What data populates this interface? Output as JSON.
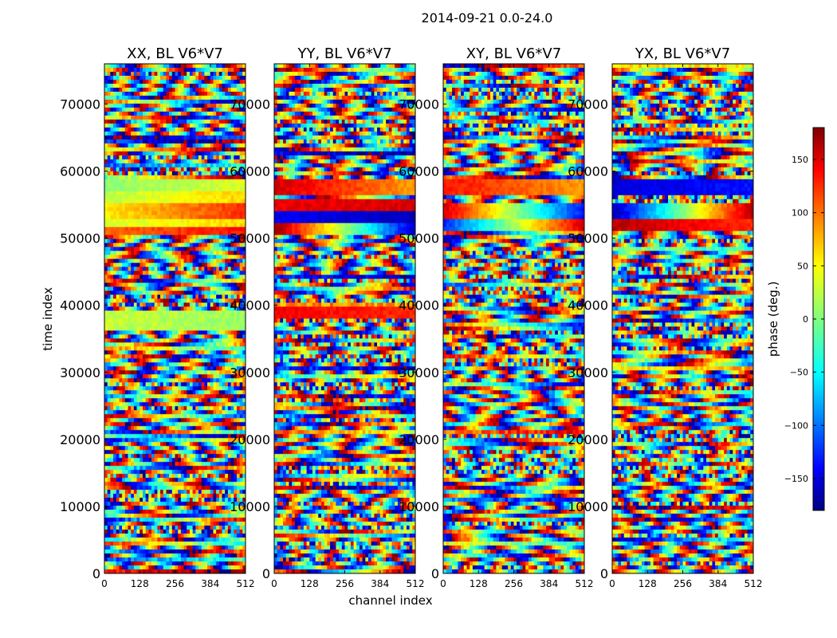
{
  "figure": {
    "suptitle": "2014-09-21 0.0-24.0",
    "xlabel": "channel index",
    "ylabel": "time index"
  },
  "colorbar": {
    "label": "phase (deg.)",
    "range": [
      -180,
      180
    ],
    "ticks": [
      -150,
      -100,
      -50,
      0,
      50,
      100,
      150
    ],
    "tick_labels": [
      "−150",
      "−100",
      "−50",
      "0",
      "50",
      "100",
      "150"
    ],
    "colormap": "jet",
    "colors": [
      "#00007f",
      "#0000ff",
      "#00ffff",
      "#7fff7f",
      "#ffff00",
      "#ff0000",
      "#7f0000"
    ]
  },
  "chart_data": [
    {
      "type": "heatmap",
      "title": "XX, BL V6*V7",
      "xlabel": "channel index",
      "ylabel": "time index",
      "xlim": [
        0,
        512
      ],
      "ylim": [
        0,
        76000
      ],
      "xticks": [
        0,
        128,
        256,
        384,
        512
      ],
      "xtick_labels": [
        "0",
        "128",
        "256",
        "384",
        "512"
      ],
      "yticks": [
        0,
        10000,
        20000,
        30000,
        40000,
        50000,
        60000,
        70000
      ],
      "ytick_labels": [
        "0",
        "10000",
        "20000",
        "30000",
        "40000",
        "50000",
        "60000",
        "70000"
      ],
      "z_label": "phase (deg.)",
      "z_range": [
        -180,
        180
      ],
      "bands": [
        {
          "t_start": 50500,
          "t_end": 51500,
          "phase_deg": 100,
          "phase_end_deg": 130
        },
        {
          "t_start": 51500,
          "t_end": 53000,
          "phase_deg": 30,
          "phase_end_deg": 60
        },
        {
          "t_start": 53000,
          "t_end": 55000,
          "phase_deg": 50,
          "phase_end_deg": 120
        },
        {
          "t_start": 55000,
          "t_end": 57000,
          "phase_deg": 20,
          "phase_end_deg": 60
        },
        {
          "t_start": 57000,
          "t_end": 59000,
          "phase_deg": 5,
          "phase_end_deg": 30
        },
        {
          "t_start": 36500,
          "t_end": 39000,
          "phase_deg": 25,
          "phase_end_deg": 10
        }
      ]
    },
    {
      "type": "heatmap",
      "title": "YY, BL V6*V7",
      "xlabel": "channel index",
      "ylabel": "time index",
      "xlim": [
        0,
        512
      ],
      "ylim": [
        0,
        76000
      ],
      "xticks": [
        0,
        128,
        256,
        384,
        512
      ],
      "xtick_labels": [
        "0",
        "128",
        "256",
        "384",
        "512"
      ],
      "yticks": [
        0,
        10000,
        20000,
        30000,
        40000,
        50000,
        60000,
        70000
      ],
      "ytick_labels": [
        "0",
        "10000",
        "20000",
        "30000",
        "40000",
        "50000",
        "60000",
        "70000"
      ],
      "z_label": "phase (deg.)",
      "z_range": [
        -180,
        180
      ],
      "bands": [
        {
          "t_start": 50500,
          "t_end": 52500,
          "phase_deg": 170,
          "phase_end_deg": -150
        },
        {
          "t_start": 52500,
          "t_end": 54000,
          "phase_deg": -140,
          "phase_end_deg": -160
        },
        {
          "t_start": 54000,
          "t_end": 56000,
          "phase_deg": 140,
          "phase_end_deg": 150
        },
        {
          "t_start": 56500,
          "t_end": 59000,
          "phase_deg": 150,
          "phase_end_deg": 80
        },
        {
          "t_start": 38000,
          "t_end": 39500,
          "phase_deg": 140,
          "phase_end_deg": 120
        }
      ]
    },
    {
      "type": "heatmap",
      "title": "XY, BL V6*V7",
      "xlabel": "channel index",
      "ylabel": "time index",
      "xlim": [
        0,
        512
      ],
      "ylim": [
        0,
        76000
      ],
      "xticks": [
        0,
        128,
        256,
        384,
        512
      ],
      "xtick_labels": [
        "0",
        "128",
        "256",
        "384",
        "512"
      ],
      "yticks": [
        0,
        10000,
        20000,
        30000,
        40000,
        50000,
        60000,
        70000
      ],
      "ytick_labels": [
        "0",
        "10000",
        "20000",
        "30000",
        "40000",
        "50000",
        "60000",
        "70000"
      ],
      "z_label": "phase (deg.)",
      "z_range": [
        -180,
        180
      ],
      "bands": [
        {
          "t_start": 51000,
          "t_end": 53000,
          "phase_deg": -120,
          "phase_end_deg": 150
        },
        {
          "t_start": 53000,
          "t_end": 55500,
          "phase_deg": 150,
          "phase_end_deg": -130
        },
        {
          "t_start": 56500,
          "t_end": 59000,
          "phase_deg": 130,
          "phase_end_deg": 80
        }
      ]
    },
    {
      "type": "heatmap",
      "title": "YX, BL V6*V7",
      "xlabel": "channel index",
      "ylabel": "time index",
      "xlim": [
        0,
        512
      ],
      "ylim": [
        0,
        76000
      ],
      "xticks": [
        0,
        128,
        256,
        384,
        512
      ],
      "xtick_labels": [
        "0",
        "128",
        "256",
        "384",
        "512"
      ],
      "yticks": [
        0,
        10000,
        20000,
        30000,
        40000,
        50000,
        60000,
        70000
      ],
      "ytick_labels": [
        "0",
        "10000",
        "20000",
        "30000",
        "40000",
        "50000",
        "60000",
        "70000"
      ],
      "z_label": "phase (deg.)",
      "z_range": [
        -180,
        180
      ],
      "bands": [
        {
          "t_start": 51000,
          "t_end": 53000,
          "phase_deg": 160,
          "phase_end_deg": 120
        },
        {
          "t_start": 53000,
          "t_end": 55500,
          "phase_deg": -160,
          "phase_end_deg": 160
        },
        {
          "t_start": 56500,
          "t_end": 59000,
          "phase_deg": -150,
          "phase_end_deg": -130
        }
      ]
    }
  ]
}
